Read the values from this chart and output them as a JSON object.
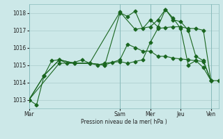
{
  "background_color": "#cce8e8",
  "grid_color": "#aacccc",
  "line_color": "#1a6620",
  "marker_color": "#1a6620",
  "xlabel": "Pression niveau de la mer( hPa )",
  "ylim": [
    1012.5,
    1018.5
  ],
  "yticks": [
    1013,
    1014,
    1015,
    1016,
    1017,
    1018
  ],
  "day_labels": [
    "Mar",
    "Sam",
    "Mer",
    "Jeu",
    "Ven"
  ],
  "day_positions": [
    0,
    12,
    16,
    20,
    24
  ],
  "total_points": 26,
  "series1_x": [
    0,
    1,
    2,
    3,
    4,
    5,
    6,
    7,
    8,
    9,
    10,
    11,
    12,
    13,
    14,
    15,
    16,
    17,
    18,
    19,
    20,
    21,
    22,
    23,
    24,
    25
  ],
  "series1_y": [
    1013.0,
    1012.7,
    1014.4,
    1015.25,
    1015.3,
    1015.1,
    1015.15,
    1015.3,
    1015.1,
    1015.0,
    1015.1,
    1015.15,
    1015.2,
    1015.1,
    1015.2,
    1015.3,
    1016.3,
    1017.1,
    1017.15,
    1017.2,
    1017.2,
    1017.1,
    1017.1,
    1017.0,
    1014.1,
    1014.1
  ],
  "series2_x": [
    0,
    2,
    4,
    6,
    8,
    10,
    12,
    13,
    14,
    15,
    16,
    17,
    18,
    19,
    20,
    21,
    22,
    23,
    24
  ],
  "series2_y": [
    1013.0,
    1014.4,
    1015.3,
    1015.1,
    1015.1,
    1015.0,
    1018.0,
    1017.8,
    1018.1,
    1017.1,
    1017.6,
    1017.2,
    1018.2,
    1017.6,
    1017.5,
    1017.0,
    1015.5,
    1015.25,
    1014.1
  ],
  "series3_x": [
    0,
    2,
    4,
    6,
    8,
    10,
    12,
    13,
    14,
    15,
    16,
    17,
    18,
    19,
    20,
    21,
    22,
    23,
    24
  ],
  "series3_y": [
    1013.0,
    1014.4,
    1015.3,
    1015.1,
    1015.1,
    1015.0,
    1015.3,
    1016.2,
    1016.0,
    1015.8,
    1015.8,
    1015.5,
    1015.5,
    1015.4,
    1015.35,
    1015.3,
    1015.25,
    1015.2,
    1014.1
  ],
  "series4_x": [
    0,
    4,
    8,
    12,
    14,
    16,
    17,
    18,
    19,
    20,
    21,
    22,
    23,
    24
  ],
  "series4_y": [
    1013.0,
    1015.1,
    1015.1,
    1018.05,
    1017.05,
    1017.2,
    1017.6,
    1018.2,
    1017.7,
    1017.1,
    1015.0,
    1015.25,
    1014.85,
    1014.1
  ]
}
